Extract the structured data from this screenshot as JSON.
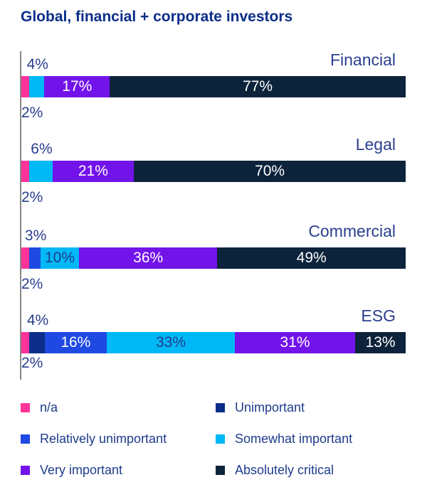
{
  "title": "Global, financial + corporate investors",
  "chart_data": {
    "type": "bar",
    "orientation": "horizontal",
    "stacked": true,
    "title": "Global, financial + corporate investors",
    "categories": [
      "Financial",
      "Legal",
      "Commercial",
      "ESG"
    ],
    "series": [
      {
        "name": "n/a",
        "color": "#ff3399",
        "values": [
          2,
          2,
          2,
          2
        ]
      },
      {
        "name": "Unimportant",
        "color": "#0c2e8a",
        "values": [
          0,
          0,
          0,
          4
        ]
      },
      {
        "name": "Relatively unimportant",
        "color": "#1e49e2",
        "values": [
          0,
          0,
          3,
          16
        ]
      },
      {
        "name": "Somewhat important",
        "color": "#00b8f5",
        "values": [
          4,
          6,
          10,
          33
        ]
      },
      {
        "name": "Very important",
        "color": "#7213ea",
        "values": [
          17,
          21,
          36,
          31
        ]
      },
      {
        "name": "Absolutely critical",
        "color": "#0c233b",
        "values": [
          77,
          70,
          49,
          13
        ]
      }
    ],
    "legend": "bottom"
  }
}
